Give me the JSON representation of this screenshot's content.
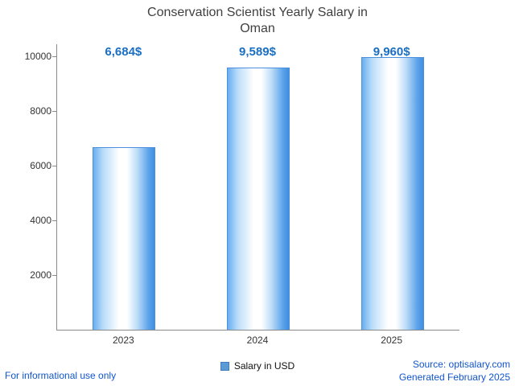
{
  "title": "Conservation Scientist Yearly Salary in Oman",
  "chart_data": {
    "type": "bar",
    "title": "Conservation Scientist Yearly Salary in Oman",
    "categories": [
      "2023",
      "2024",
      "2025"
    ],
    "values": [
      6684,
      9589,
      9960
    ],
    "value_labels": [
      "6,684$",
      "9,589$",
      "9,960$"
    ],
    "xlabel": "",
    "ylabel": "",
    "ylim": [
      0,
      10000
    ],
    "yticks": [
      2000,
      4000,
      6000,
      8000,
      10000
    ],
    "grid": false,
    "legend": {
      "position": "bottom",
      "items": [
        "Salary in USD"
      ]
    },
    "colors": {
      "bar_edge": "#418ee0",
      "bar_center": "#ffffff",
      "value_label": "#1a6fc4",
      "link_text": "#1155cc",
      "axis": "#8a8a8a",
      "title": "#404040",
      "tick_label": "#333333",
      "legend_marker": "#5b9bd5"
    }
  },
  "footer": {
    "left": "For informational use only",
    "source": "Source: optisalary.com",
    "generated": "Generated February 2025"
  }
}
